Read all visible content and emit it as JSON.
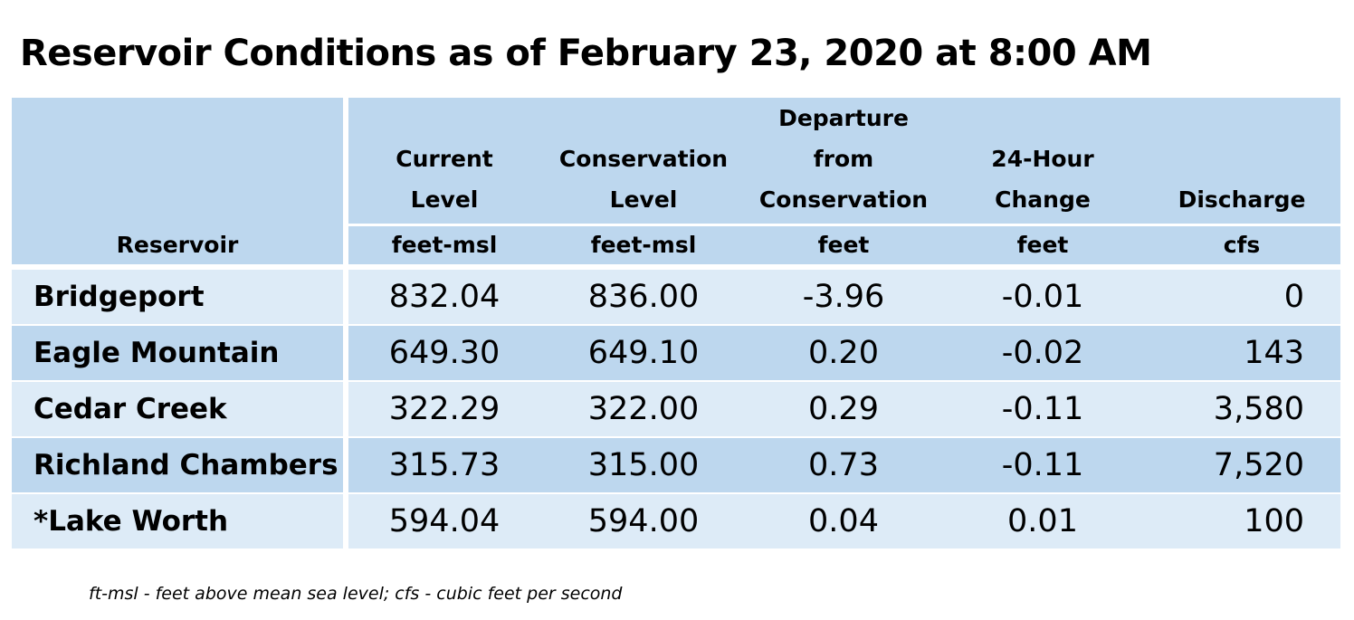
{
  "title": "Reservoir Conditions as of February 23, 2020 at 8:00 AM",
  "header": {
    "reservoir": "Reservoir",
    "current": [
      "Current",
      "Level"
    ],
    "conservation": [
      "Conservation",
      "Level"
    ],
    "departure": [
      "Departure",
      "from",
      "Conservation"
    ],
    "change": [
      "24-Hour",
      "Change"
    ],
    "discharge": "Discharge"
  },
  "units": [
    "feet-msl",
    "feet-msl",
    "feet",
    "feet",
    "cfs"
  ],
  "rows": [
    {
      "name": "Bridgeport",
      "current": "832.04",
      "conservation": "836.00",
      "departure": "-3.96",
      "change": "-0.01",
      "discharge": "0"
    },
    {
      "name": "Eagle Mountain",
      "current": "649.30",
      "conservation": "649.10",
      "departure": "0.20",
      "change": "-0.02",
      "discharge": "143"
    },
    {
      "name": "Cedar Creek",
      "current": "322.29",
      "conservation": "322.00",
      "departure": "0.29",
      "change": "-0.11",
      "discharge": "3,580"
    },
    {
      "name": "Richland Chambers",
      "current": "315.73",
      "conservation": "315.00",
      "departure": "0.73",
      "change": "-0.11",
      "discharge": "7,520"
    },
    {
      "name": "*Lake Worth",
      "current": "594.04",
      "conservation": "594.00",
      "departure": "0.04",
      "change": "0.01",
      "discharge": "100"
    }
  ],
  "footnote": "ft-msl - feet above mean sea level; cfs - cubic feet per second"
}
